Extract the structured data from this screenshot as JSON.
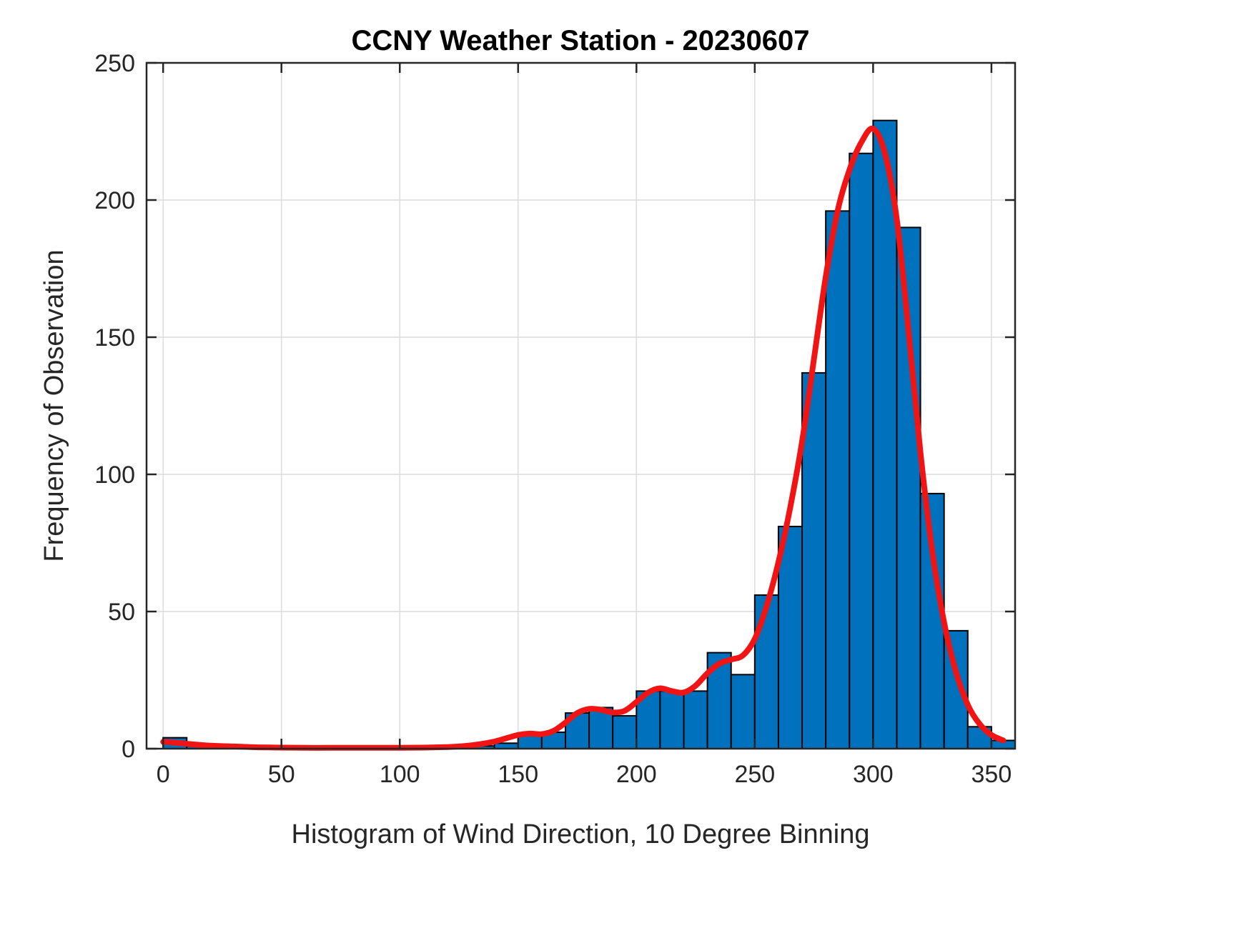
{
  "chart_data": {
    "type": "bar",
    "subtype": "histogram_with_smoothed_curve",
    "title": "CCNY Weather Station - 20230607",
    "xlabel": "Histogram of Wind Direction, 10 Degree Binning",
    "ylabel": "Frequency of Observation",
    "xlim": [
      -7,
      360
    ],
    "ylim": [
      0,
      250
    ],
    "xticks": [
      0,
      50,
      100,
      150,
      200,
      250,
      300,
      350
    ],
    "yticks": [
      0,
      50,
      100,
      150,
      200,
      250
    ],
    "grid": true,
    "legend_position": "none",
    "bin_start": 0,
    "bin_width": 10,
    "values": [
      4,
      1,
      1,
      0,
      0,
      0,
      0,
      0,
      0,
      0,
      0,
      0,
      0,
      1,
      2,
      5,
      6,
      13,
      15,
      12,
      21,
      21,
      21,
      35,
      27,
      56,
      81,
      137,
      196,
      217,
      229,
      190,
      93,
      43,
      8,
      3
    ],
    "bar_color": "#0072BD",
    "bar_edge_color": "#000000",
    "grid_color": "#dbdbdb",
    "axis_color": "#262626",
    "curve_color": "#f01414",
    "curve": {
      "name": "smoothed-frequency-curve",
      "x": [
        0,
        5,
        10,
        15,
        20,
        30,
        40,
        50,
        60,
        70,
        80,
        90,
        100,
        110,
        120,
        125,
        130,
        135,
        140,
        145,
        150,
        155,
        160,
        165,
        170,
        175,
        180,
        185,
        190,
        195,
        200,
        205,
        210,
        215,
        220,
        225,
        230,
        235,
        240,
        245,
        250,
        255,
        260,
        265,
        270,
        275,
        280,
        285,
        290,
        295,
        300,
        305,
        310,
        315,
        320,
        325,
        330,
        335,
        340,
        345,
        350,
        355
      ],
      "y": [
        2.5,
        2.2,
        1.8,
        1.4,
        1.1,
        0.8,
        0.5,
        0.4,
        0.3,
        0.3,
        0.3,
        0.3,
        0.3,
        0.4,
        0.6,
        0.8,
        1.2,
        1.8,
        2.6,
        3.8,
        5.0,
        5.5,
        5.3,
        6.5,
        9.5,
        13.0,
        14.5,
        14.2,
        13.2,
        13.8,
        17.0,
        20.5,
        22.0,
        21.0,
        20.5,
        23.0,
        27.5,
        31.0,
        32.5,
        34.0,
        40.0,
        52.0,
        68.0,
        88.0,
        112.0,
        142.0,
        172.0,
        196.0,
        211.0,
        221.0,
        226.0,
        217.0,
        193.0,
        152.0,
        108.0,
        72.0,
        46.0,
        28.0,
        16.0,
        9.0,
        5.0,
        3.0
      ]
    }
  }
}
